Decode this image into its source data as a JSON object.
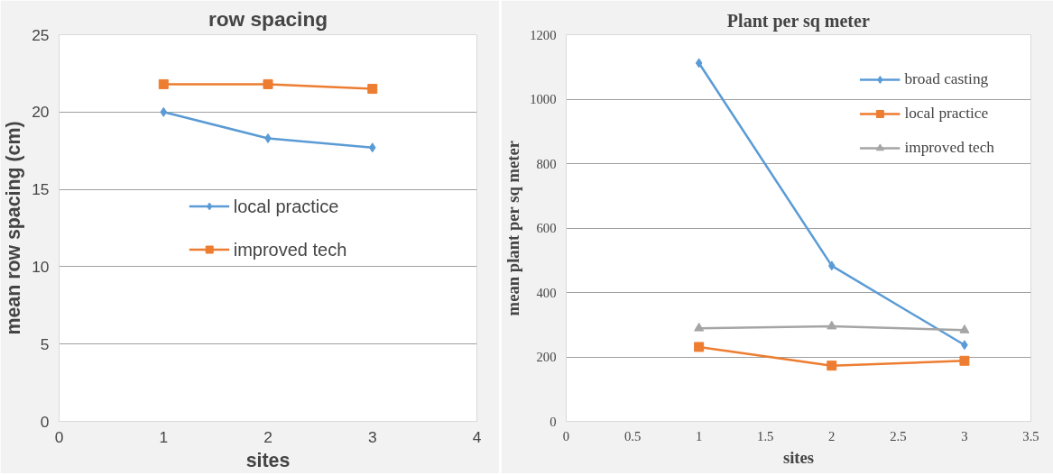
{
  "chart_data": [
    {
      "type": "line",
      "title": "row spacing",
      "xlabel": "sites",
      "ylabel": "mean row spacing (cm)",
      "x": [
        1,
        2,
        3
      ],
      "series": [
        {
          "name": "local practice",
          "color": "#5b9bd5",
          "marker": "diamond",
          "values": [
            20.0,
            18.3,
            17.7
          ]
        },
        {
          "name": "improved tech",
          "color": "#ed7d31",
          "marker": "square",
          "values": [
            21.8,
            21.8,
            21.5
          ]
        }
      ],
      "xlim": [
        0,
        4
      ],
      "xticks": [
        0,
        1,
        2,
        3,
        4
      ],
      "ylim": [
        0,
        25
      ],
      "yticks": [
        0,
        5,
        10,
        15,
        20,
        25
      ],
      "grid": "y",
      "legend": "center"
    },
    {
      "type": "line",
      "title": "Plant per sq meter",
      "xlabel": "sites",
      "ylabel": "mean plant per sq meter",
      "x": [
        1,
        2,
        3
      ],
      "series": [
        {
          "name": "broad casting",
          "color": "#5b9bd5",
          "marker": "diamond",
          "values": [
            1112,
            483,
            237
          ]
        },
        {
          "name": "local practice",
          "color": "#ed7d31",
          "marker": "square",
          "values": [
            231,
            173,
            188
          ]
        },
        {
          "name": "improved tech",
          "color": "#a5a5a5",
          "marker": "triangle",
          "values": [
            289,
            295,
            283
          ]
        }
      ],
      "xlim": [
        0,
        3.5
      ],
      "xticks": [
        0,
        0.5,
        1,
        1.5,
        2,
        2.5,
        3,
        3.5
      ],
      "ylim": [
        0,
        1200
      ],
      "yticks": [
        0,
        200,
        400,
        600,
        800,
        1000,
        1200
      ],
      "grid": "y",
      "legend": "top right"
    }
  ]
}
